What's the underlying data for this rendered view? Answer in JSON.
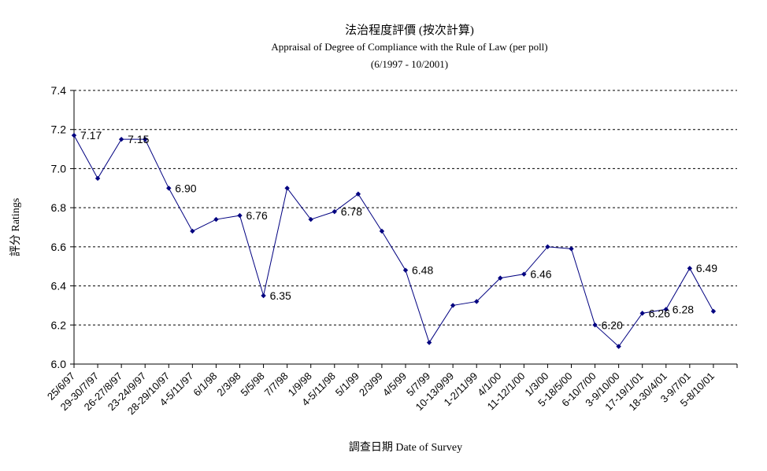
{
  "chart_data": {
    "type": "line",
    "title": "法治程度評價 (按次計算)",
    "subtitle": "Appraisal of Degree of Compliance with the Rule of Law (per poll)",
    "period": "(6/1997 - 10/2001)",
    "xlabel": "調查日期 Date of Survey",
    "ylabel": "評分 Ratings",
    "ylim": [
      6.0,
      7.4
    ],
    "yticks": [
      "6.0",
      "6.2",
      "6.4",
      "6.6",
      "6.8",
      "7.0",
      "7.2",
      "7.4"
    ],
    "grid": true,
    "categories": [
      "25/6/97",
      "29-30/7/97",
      "26-27/8/97",
      "23-24/9/97",
      "28-29/10/97",
      "4-5/11/97",
      "6/1/98",
      "2/3/98",
      "5/5/98",
      "7/7/98",
      "1/9/98",
      "4-5/11/98",
      "5/1/99",
      "2/3/99",
      "4/5/99",
      "5/7/99",
      "10-13/9/99",
      "1-2/11/99",
      "4/1/00",
      "11-12/1/00",
      "1/3/00",
      "5-18/5/00",
      "6-10/7/00",
      "3-9/10/00",
      "17-19/1/01",
      "18-30/4/01",
      "3-9/7/01",
      "5-8/10/01"
    ],
    "series": [
      {
        "color": "#000080",
        "values": [
          7.17,
          6.95,
          7.15,
          7.15,
          6.9,
          6.68,
          6.74,
          6.76,
          6.35,
          6.9,
          6.74,
          6.78,
          6.87,
          6.68,
          6.48,
          6.11,
          6.3,
          6.32,
          6.44,
          6.46,
          6.6,
          6.59,
          6.2,
          6.09,
          6.26,
          6.28,
          6.49,
          6.27
        ]
      }
    ],
    "data_labels": [
      {
        "index": 0,
        "text": "7.17"
      },
      {
        "index": 2,
        "text": "7.15"
      },
      {
        "index": 4,
        "text": "6.90"
      },
      {
        "index": 7,
        "text": "6.76"
      },
      {
        "index": 8,
        "text": "6.35"
      },
      {
        "index": 11,
        "text": "6.78"
      },
      {
        "index": 14,
        "text": "6.48"
      },
      {
        "index": 19,
        "text": "6.46"
      },
      {
        "index": 22,
        "text": "6.20"
      },
      {
        "index": 24,
        "text": "6.26"
      },
      {
        "index": 25,
        "text": "6.28"
      },
      {
        "index": 26,
        "text": "6.49"
      }
    ]
  }
}
